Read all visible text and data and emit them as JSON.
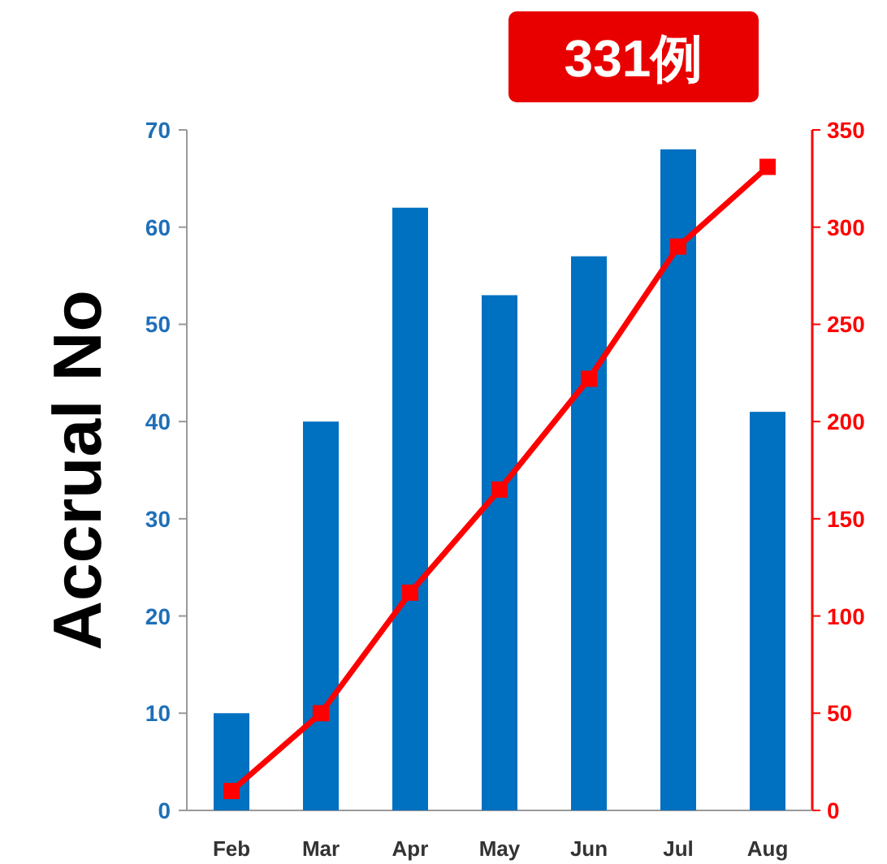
{
  "chart_data": {
    "type": "bar",
    "ylabel": "Accrual No",
    "categories": [
      "Feb",
      "Mar",
      "Apr",
      "May",
      "Jun",
      "Jul",
      "Aug"
    ],
    "series": [
      {
        "color": "#0070c0",
        "values": [
          10,
          40,
          62,
          53,
          57,
          68,
          41
        ]
      },
      {
        "type": "line",
        "axis": "y2",
        "color": "#ff0000",
        "marker": "square",
        "values": [
          10,
          50,
          112,
          165,
          222,
          290,
          331
        ]
      }
    ],
    "ylim": [
      0,
      70
    ],
    "yticks": [
      0,
      10,
      20,
      30,
      40,
      50,
      60,
      70
    ],
    "y2lim": [
      0,
      350
    ],
    "y2ticks": [
      0,
      50,
      100,
      150,
      200,
      250,
      300,
      350
    ],
    "annotations": [
      "331例"
    ],
    "grid": false
  }
}
